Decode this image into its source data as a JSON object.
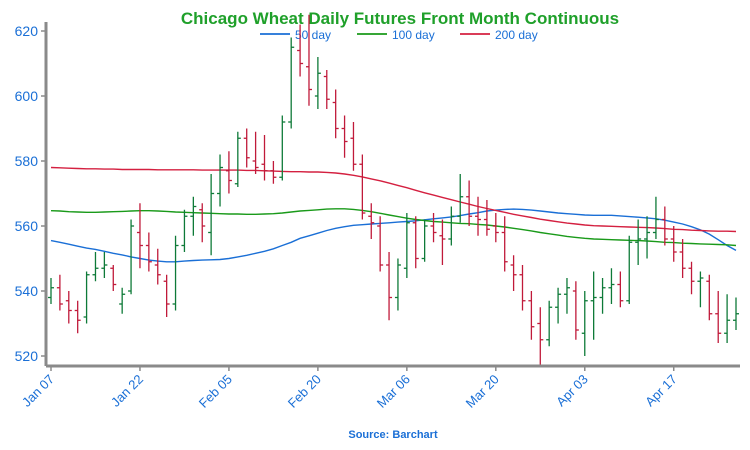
{
  "chart_data": {
    "type": "ohlc",
    "title": "Chicago Wheat Daily Futures Front Month Continuous",
    "source": "Source: Barchart",
    "xlabel": "",
    "ylabel": "",
    "ylim": [
      517,
      624
    ],
    "y_ticks": [
      520,
      540,
      560,
      580,
      600,
      620
    ],
    "x_ticks": [
      "Jan 07",
      "Jan 22",
      "Feb 05",
      "Feb 20",
      "Mar 06",
      "Mar 20",
      "Apr 03",
      "Apr 17"
    ],
    "grid": false,
    "legend_position": "top",
    "colors": {
      "title": "#1fa02a",
      "axis_text": "#1a6fd6",
      "source": "#1a6fd6",
      "axis": "#8a8a8a",
      "up_bar": "#0e7a38",
      "down_bar": "#c01a3a",
      "sma50": "#1a6fd6",
      "sma100": "#1a9a1a",
      "sma200": "#d42040"
    },
    "bars": [
      {
        "d": "Jan 07",
        "o": 538,
        "h": 544,
        "l": 536,
        "c": 541
      },
      {
        "d": "Jan 08",
        "o": 541,
        "h": 545,
        "l": 534,
        "c": 536
      },
      {
        "d": "Jan 09",
        "o": 537,
        "h": 540,
        "l": 530,
        "c": 534
      },
      {
        "d": "Jan 10",
        "o": 534,
        "h": 537,
        "l": 527,
        "c": 531
      },
      {
        "d": "Jan 13",
        "o": 532,
        "h": 546,
        "l": 530,
        "c": 545
      },
      {
        "d": "Jan 14",
        "o": 545,
        "h": 552,
        "l": 543,
        "c": 547
      },
      {
        "d": "Jan 15",
        "o": 547,
        "h": 552,
        "l": 544,
        "c": 548
      },
      {
        "d": "Jan 16",
        "o": 547,
        "h": 548,
        "l": 540,
        "c": 542
      },
      {
        "d": "Jan 17",
        "o": 536,
        "h": 541,
        "l": 533,
        "c": 539
      },
      {
        "d": "Jan 21",
        "o": 540,
        "h": 562,
        "l": 539,
        "c": 560
      },
      {
        "d": "Jan 22",
        "o": 558,
        "h": 567,
        "l": 547,
        "c": 554
      },
      {
        "d": "Jan 23",
        "o": 554,
        "h": 558,
        "l": 546,
        "c": 549
      },
      {
        "d": "Jan 24",
        "o": 548,
        "h": 553,
        "l": 542,
        "c": 545
      },
      {
        "d": "Jan 27",
        "o": 543,
        "h": 545,
        "l": 532,
        "c": 536
      },
      {
        "d": "Jan 28",
        "o": 536,
        "h": 557,
        "l": 534,
        "c": 554
      },
      {
        "d": "Jan 29",
        "o": 554,
        "h": 565,
        "l": 552,
        "c": 563
      },
      {
        "d": "Jan 30",
        "o": 563,
        "h": 569,
        "l": 557,
        "c": 566
      },
      {
        "d": "Jan 31",
        "o": 565,
        "h": 567,
        "l": 555,
        "c": 560
      },
      {
        "d": "Feb 03",
        "o": 558,
        "h": 576,
        "l": 551,
        "c": 570
      },
      {
        "d": "Feb 04",
        "o": 570,
        "h": 582,
        "l": 566,
        "c": 578
      },
      {
        "d": "Feb 05",
        "o": 577,
        "h": 583,
        "l": 570,
        "c": 574
      },
      {
        "d": "Feb 06",
        "o": 573,
        "h": 589,
        "l": 572,
        "c": 587
      },
      {
        "d": "Feb 07",
        "o": 587,
        "h": 590,
        "l": 578,
        "c": 581
      },
      {
        "d": "Feb 10",
        "o": 580,
        "h": 589,
        "l": 576,
        "c": 578
      },
      {
        "d": "Feb 11",
        "o": 579,
        "h": 588,
        "l": 574,
        "c": 577
      },
      {
        "d": "Feb 12",
        "o": 577,
        "h": 580,
        "l": 573,
        "c": 575
      },
      {
        "d": "Feb 13",
        "o": 575,
        "h": 594,
        "l": 574,
        "c": 592
      },
      {
        "d": "Feb 14",
        "o": 592,
        "h": 618,
        "l": 590,
        "c": 615
      },
      {
        "d": "Feb 18",
        "o": 614,
        "h": 622,
        "l": 606,
        "c": 610
      },
      {
        "d": "Feb 19",
        "o": 609,
        "h": 625,
        "l": 597,
        "c": 602
      },
      {
        "d": "Feb 20",
        "o": 600,
        "h": 612,
        "l": 596,
        "c": 607
      },
      {
        "d": "Feb 21",
        "o": 606,
        "h": 608,
        "l": 596,
        "c": 599
      },
      {
        "d": "Feb 24",
        "o": 598,
        "h": 602,
        "l": 587,
        "c": 590
      },
      {
        "d": "Feb 25",
        "o": 590,
        "h": 594,
        "l": 581,
        "c": 586
      },
      {
        "d": "Feb 26",
        "o": 587,
        "h": 592,
        "l": 577,
        "c": 579
      },
      {
        "d": "Feb 27",
        "o": 579,
        "h": 582,
        "l": 562,
        "c": 564
      },
      {
        "d": "Feb 28",
        "o": 563,
        "h": 567,
        "l": 556,
        "c": 561
      },
      {
        "d": "Mar 03",
        "o": 560,
        "h": 563,
        "l": 546,
        "c": 548
      },
      {
        "d": "Mar 04",
        "o": 548,
        "h": 552,
        "l": 531,
        "c": 538
      },
      {
        "d": "Mar 05",
        "o": 538,
        "h": 550,
        "l": 534,
        "c": 548
      },
      {
        "d": "Mar 06",
        "o": 547,
        "h": 564,
        "l": 544,
        "c": 561
      },
      {
        "d": "Mar 07",
        "o": 561,
        "h": 563,
        "l": 547,
        "c": 550
      },
      {
        "d": "Mar 10",
        "o": 550,
        "h": 562,
        "l": 549,
        "c": 560
      },
      {
        "d": "Mar 11",
        "o": 560,
        "h": 564,
        "l": 555,
        "c": 558
      },
      {
        "d": "Mar 12",
        "o": 557,
        "h": 562,
        "l": 548,
        "c": 556
      },
      {
        "d": "Mar 13",
        "o": 556,
        "h": 566,
        "l": 554,
        "c": 563
      },
      {
        "d": "Mar 14",
        "o": 563,
        "h": 576,
        "l": 561,
        "c": 569
      },
      {
        "d": "Mar 17",
        "o": 569,
        "h": 574,
        "l": 560,
        "c": 563
      },
      {
        "d": "Mar 18",
        "o": 563,
        "h": 569,
        "l": 557,
        "c": 562
      },
      {
        "d": "Mar 19",
        "o": 562,
        "h": 568,
        "l": 557,
        "c": 559
      },
      {
        "d": "Mar 20",
        "o": 560,
        "h": 564,
        "l": 555,
        "c": 558
      },
      {
        "d": "Mar 21",
        "o": 558,
        "h": 563,
        "l": 546,
        "c": 549
      },
      {
        "d": "Mar 24",
        "o": 548,
        "h": 551,
        "l": 540,
        "c": 545
      },
      {
        "d": "Mar 25",
        "o": 545,
        "h": 548,
        "l": 534,
        "c": 537
      },
      {
        "d": "Mar 26",
        "o": 537,
        "h": 540,
        "l": 525,
        "c": 529
      },
      {
        "d": "Mar 27",
        "o": 530,
        "h": 535,
        "l": 517,
        "c": 525
      },
      {
        "d": "Mar 28",
        "o": 525,
        "h": 537,
        "l": 523,
        "c": 535
      },
      {
        "d": "Mar 31",
        "o": 535,
        "h": 541,
        "l": 530,
        "c": 539
      },
      {
        "d": "Apr 01",
        "o": 539,
        "h": 544,
        "l": 533,
        "c": 541
      },
      {
        "d": "Apr 02",
        "o": 540,
        "h": 543,
        "l": 525,
        "c": 528
      },
      {
        "d": "Apr 03",
        "o": 527,
        "h": 540,
        "l": 520,
        "c": 537
      },
      {
        "d": "Apr 04",
        "o": 537,
        "h": 546,
        "l": 525,
        "c": 538
      },
      {
        "d": "Apr 07",
        "o": 538,
        "h": 544,
        "l": 533,
        "c": 541
      },
      {
        "d": "Apr 08",
        "o": 541,
        "h": 547,
        "l": 536,
        "c": 542
      },
      {
        "d": "Apr 09",
        "o": 542,
        "h": 546,
        "l": 535,
        "c": 537
      },
      {
        "d": "Apr 10",
        "o": 537,
        "h": 557,
        "l": 536,
        "c": 555
      },
      {
        "d": "Apr 11",
        "o": 555,
        "h": 562,
        "l": 548,
        "c": 556
      },
      {
        "d": "Apr 14",
        "o": 556,
        "h": 563,
        "l": 550,
        "c": 558
      },
      {
        "d": "Apr 15",
        "o": 558,
        "h": 569,
        "l": 556,
        "c": 562
      },
      {
        "d": "Apr 16",
        "o": 562,
        "h": 566,
        "l": 554,
        "c": 556
      },
      {
        "d": "Apr 17",
        "o": 556,
        "h": 560,
        "l": 549,
        "c": 552
      },
      {
        "d": "Apr 18",
        "o": 552,
        "h": 556,
        "l": 544,
        "c": 547
      },
      {
        "d": "Apr 21",
        "o": 547,
        "h": 549,
        "l": 539,
        "c": 543
      },
      {
        "d": "Apr 22",
        "o": 543,
        "h": 546,
        "l": 535,
        "c": 544
      },
      {
        "d": "Apr 23",
        "o": 543,
        "h": 545,
        "l": 531,
        "c": 533
      },
      {
        "d": "Apr 24",
        "o": 533,
        "h": 540,
        "l": 524,
        "c": 527
      },
      {
        "d": "Apr 25",
        "o": 527,
        "h": 539,
        "l": 524,
        "c": 531
      },
      {
        "d": "Apr 28",
        "o": 531,
        "h": 538,
        "l": 528,
        "c": 533
      }
    ],
    "series": [
      {
        "name": "50 day",
        "values": [
          555.5,
          555.0,
          554.4,
          553.8,
          553.2,
          552.8,
          552.2,
          551.6,
          551.1,
          550.5,
          550.0,
          549.5,
          549.2,
          549.0,
          549.0,
          549.2,
          549.4,
          549.5,
          549.6,
          549.7,
          550.0,
          550.5,
          551.0,
          551.6,
          552.2,
          553.0,
          554.0,
          555.0,
          556.2,
          557.0,
          557.8,
          558.6,
          559.3,
          559.8,
          560.2,
          560.4,
          560.6,
          560.8,
          561.0,
          561.2,
          561.4,
          561.6,
          561.9,
          562.2,
          562.5,
          562.8,
          563.2,
          563.7,
          564.1,
          564.6,
          564.9,
          565.1,
          565.2,
          565.1,
          564.9,
          564.6,
          564.3,
          564.0,
          563.8,
          563.6,
          563.4,
          563.3,
          563.3,
          563.3,
          563.1,
          562.9,
          562.7,
          562.5,
          562.2,
          561.8,
          561.2,
          560.6,
          559.8,
          558.8,
          557.5,
          555.8,
          554.0,
          552.5
        ]
      },
      {
        "name": "100 day",
        "values": [
          564.7,
          564.6,
          564.4,
          564.3,
          564.2,
          564.2,
          564.3,
          564.4,
          564.5,
          564.6,
          564.7,
          564.7,
          564.6,
          564.5,
          564.3,
          564.2,
          564.1,
          564.0,
          563.9,
          563.8,
          563.7,
          563.7,
          563.6,
          563.6,
          563.7,
          563.8,
          564.0,
          564.3,
          564.6,
          564.8,
          565.0,
          565.2,
          565.3,
          565.3,
          565.1,
          564.8,
          564.4,
          563.9,
          563.4,
          562.9,
          562.4,
          562.0,
          561.7,
          561.4,
          561.2,
          561.0,
          560.8,
          560.7,
          560.5,
          560.3,
          560.0,
          559.7,
          559.3,
          558.9,
          558.5,
          558.0,
          557.6,
          557.2,
          556.8,
          556.5,
          556.2,
          556.0,
          555.9,
          555.8,
          555.7,
          555.6,
          555.5,
          555.4,
          555.2,
          555.0,
          554.9,
          554.7,
          554.6,
          554.5,
          554.4,
          554.3,
          554.2,
          554.0
        ]
      },
      {
        "name": "200 day",
        "values": [
          578.0,
          577.9,
          577.8,
          577.7,
          577.6,
          577.6,
          577.5,
          577.5,
          577.4,
          577.4,
          577.4,
          577.4,
          577.3,
          577.3,
          577.3,
          577.3,
          577.3,
          577.2,
          577.2,
          577.2,
          577.2,
          577.2,
          577.1,
          577.1,
          577.0,
          576.9,
          576.8,
          576.7,
          576.7,
          576.6,
          576.6,
          576.5,
          576.3,
          576.0,
          575.6,
          575.1,
          574.5,
          573.9,
          573.2,
          572.5,
          571.8,
          571.0,
          570.2,
          569.5,
          568.8,
          568.1,
          567.4,
          566.7,
          566.0,
          565.4,
          564.8,
          564.2,
          563.6,
          563.1,
          562.6,
          562.1,
          561.7,
          561.3,
          560.9,
          560.6,
          560.3,
          560.1,
          560.0,
          559.9,
          559.8,
          559.7,
          559.6,
          559.5,
          559.4,
          559.2,
          559.0,
          558.9,
          558.7,
          558.6,
          558.5,
          558.4,
          558.4,
          558.3
        ]
      }
    ]
  }
}
